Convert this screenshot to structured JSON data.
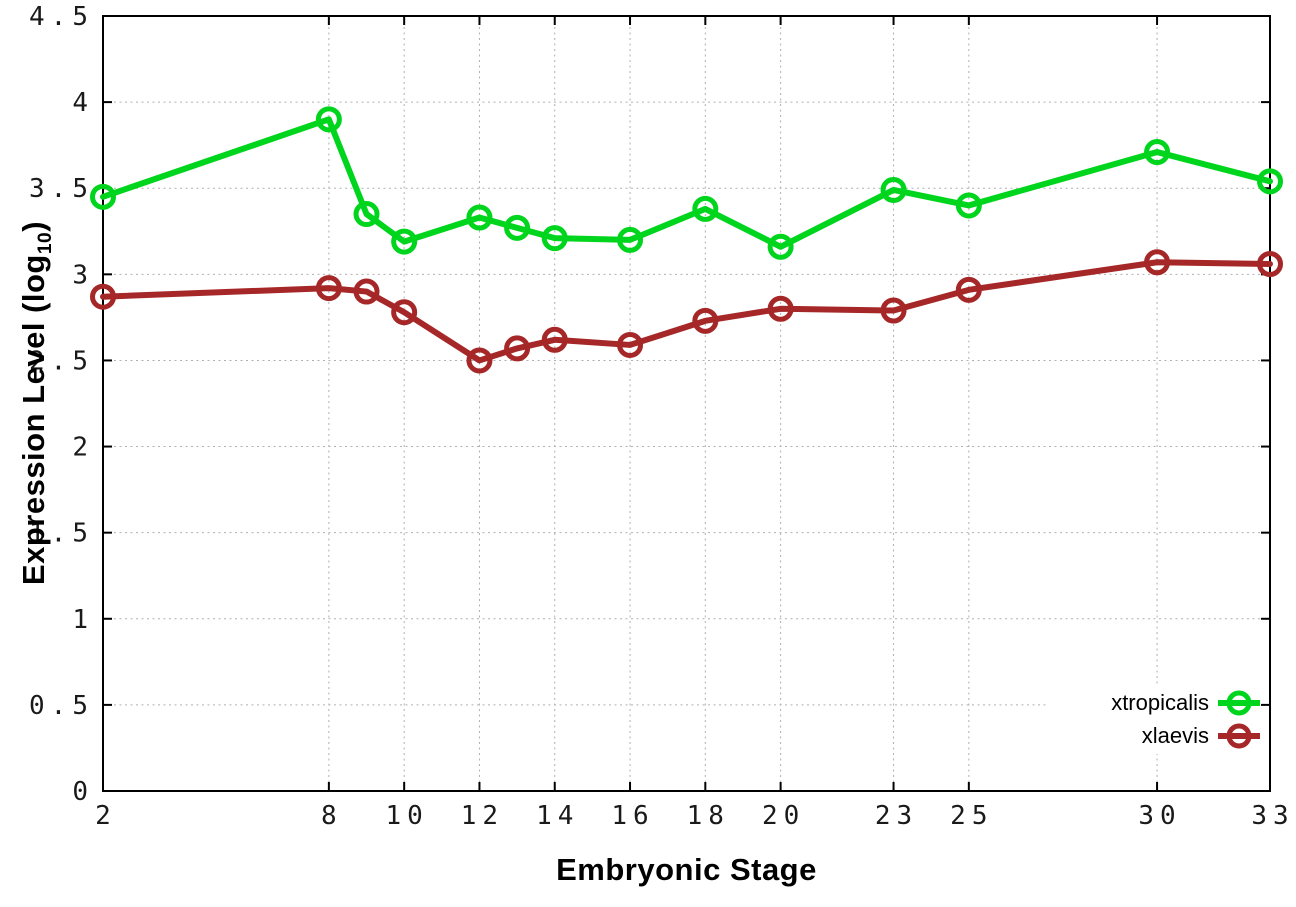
{
  "figure": {
    "background": "#ffffff",
    "axis_color": "#000000",
    "grid_color": "#b0b0b0",
    "tick_label_color": "#1a1a1a"
  },
  "chart_data": {
    "type": "line",
    "title": "",
    "xlabel": "Embryonic Stage",
    "ylabel": "Expression Level (log10)",
    "ylabel_parts": {
      "main": "Expression Level (log",
      "sub": "10",
      "close": ")"
    },
    "xlim": [
      2,
      33
    ],
    "ylim": [
      0,
      4.5
    ],
    "grid": true,
    "legend_position": "inside-bottom-right",
    "marker": "open-circle",
    "xtick_values": [
      2,
      8,
      10,
      12,
      14,
      16,
      18,
      20,
      23,
      25,
      30,
      33
    ],
    "xtick_labels": [
      "2",
      "8",
      "10",
      "12",
      "14",
      "16",
      "18",
      "20",
      "23",
      "25",
      "30",
      "33"
    ],
    "ytick_values": [
      0,
      0.5,
      1,
      1.5,
      2,
      2.5,
      3,
      3.5,
      4,
      4.5
    ],
    "ytick_labels": [
      "0",
      "0.5",
      "1",
      "1.5",
      "2",
      "2.5",
      "3",
      "3.5",
      "4",
      "4.5"
    ],
    "x": [
      2,
      8,
      9,
      10,
      12,
      13,
      14,
      16,
      18,
      20,
      23,
      25,
      30,
      33
    ],
    "series": [
      {
        "name": "xtropicalis",
        "color": "#00d51e",
        "values": [
          3.45,
          3.9,
          3.35,
          3.19,
          3.33,
          3.27,
          3.21,
          3.2,
          3.38,
          3.16,
          3.49,
          3.4,
          3.71,
          3.54
        ]
      },
      {
        "name": "xlaevis",
        "color": "#a62727",
        "values": [
          2.87,
          2.92,
          2.9,
          2.78,
          2.5,
          2.57,
          2.62,
          2.59,
          2.73,
          2.8,
          2.79,
          2.91,
          3.07,
          3.06
        ]
      }
    ]
  }
}
